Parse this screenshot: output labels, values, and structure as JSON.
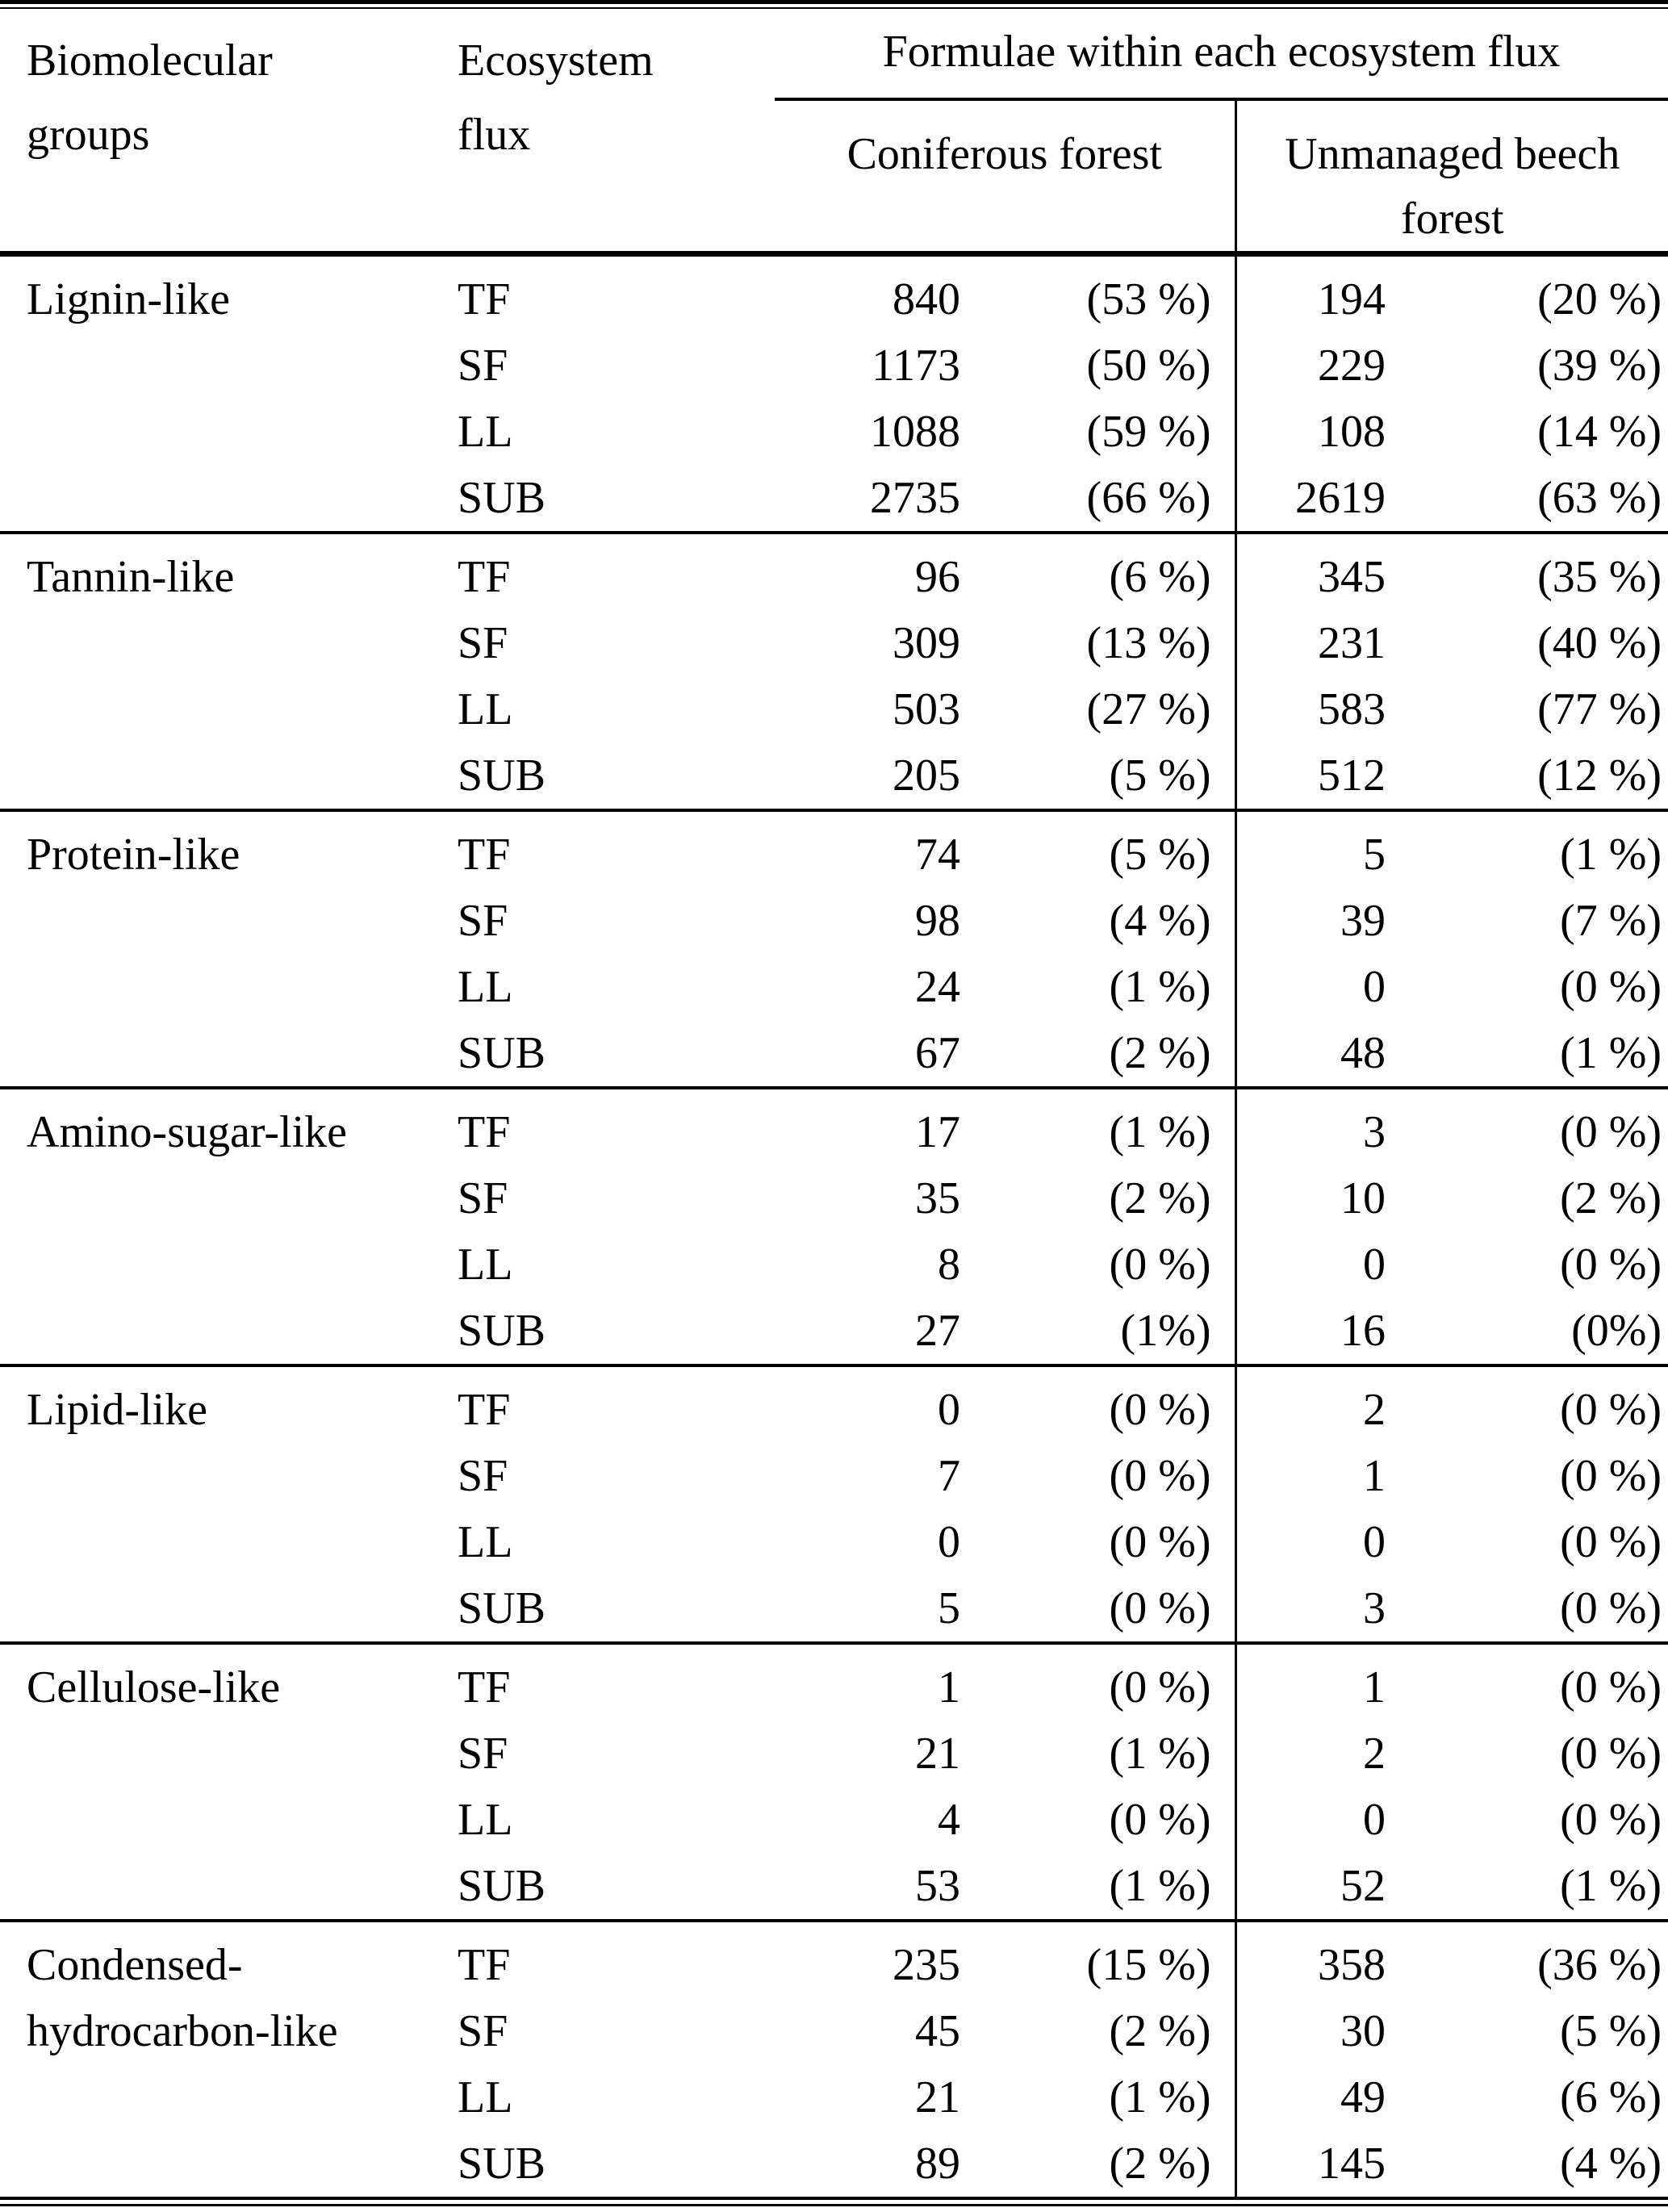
{
  "colors": {
    "background": "#ffffff",
    "text": "#000000",
    "rule": "#000000"
  },
  "table": {
    "headers": {
      "biomolecular_groups": "Biomolecular groups",
      "ecosystem_flux": "Ecosystem flux",
      "formulae_span": "Formulae within each ecosystem flux",
      "coniferous": "Coniferous forest",
      "beech": "Unmanaged beech forest"
    },
    "groups": [
      {
        "name": "Lignin-like",
        "rows": [
          {
            "flux": "TF",
            "coniferous_count": "840",
            "coniferous_pct": "(53 %)",
            "beech_count": "194",
            "beech_pct": "(20 %)"
          },
          {
            "flux": "SF",
            "coniferous_count": "1173",
            "coniferous_pct": "(50 %)",
            "beech_count": "229",
            "beech_pct": "(39 %)"
          },
          {
            "flux": "LL",
            "coniferous_count": "1088",
            "coniferous_pct": "(59 %)",
            "beech_count": "108",
            "beech_pct": "(14 %)"
          },
          {
            "flux": "SUB",
            "coniferous_count": "2735",
            "coniferous_pct": "(66 %)",
            "beech_count": "2619",
            "beech_pct": "(63 %)"
          }
        ]
      },
      {
        "name": "Tannin-like",
        "rows": [
          {
            "flux": "TF",
            "coniferous_count": "96",
            "coniferous_pct": "(6 %)",
            "beech_count": "345",
            "beech_pct": "(35 %)"
          },
          {
            "flux": "SF",
            "coniferous_count": "309",
            "coniferous_pct": "(13 %)",
            "beech_count": "231",
            "beech_pct": "(40 %)"
          },
          {
            "flux": "LL",
            "coniferous_count": "503",
            "coniferous_pct": "(27 %)",
            "beech_count": "583",
            "beech_pct": "(77 %)"
          },
          {
            "flux": "SUB",
            "coniferous_count": "205",
            "coniferous_pct": "(5 %)",
            "beech_count": "512",
            "beech_pct": "(12 %)"
          }
        ]
      },
      {
        "name": "Protein-like",
        "rows": [
          {
            "flux": "TF",
            "coniferous_count": "74",
            "coniferous_pct": "(5 %)",
            "beech_count": "5",
            "beech_pct": "(1 %)"
          },
          {
            "flux": "SF",
            "coniferous_count": "98",
            "coniferous_pct": "(4 %)",
            "beech_count": "39",
            "beech_pct": "(7 %)"
          },
          {
            "flux": "LL",
            "coniferous_count": "24",
            "coniferous_pct": "(1 %)",
            "beech_count": "0",
            "beech_pct": "(0 %)"
          },
          {
            "flux": "SUB",
            "coniferous_count": "67",
            "coniferous_pct": "(2 %)",
            "beech_count": "48",
            "beech_pct": "(1 %)"
          }
        ]
      },
      {
        "name": "Amino-sugar-like",
        "rows": [
          {
            "flux": "TF",
            "coniferous_count": "17",
            "coniferous_pct": "(1 %)",
            "beech_count": "3",
            "beech_pct": "(0 %)"
          },
          {
            "flux": "SF",
            "coniferous_count": "35",
            "coniferous_pct": "(2 %)",
            "beech_count": "10",
            "beech_pct": "(2 %)"
          },
          {
            "flux": "LL",
            "coniferous_count": "8",
            "coniferous_pct": "(0 %)",
            "beech_count": "0",
            "beech_pct": "(0 %)"
          },
          {
            "flux": "SUB",
            "coniferous_count": "27",
            "coniferous_pct": "(1%)",
            "beech_count": "16",
            "beech_pct": "(0%)"
          }
        ]
      },
      {
        "name": "Lipid-like",
        "rows": [
          {
            "flux": "TF",
            "coniferous_count": "0",
            "coniferous_pct": "(0 %)",
            "beech_count": "2",
            "beech_pct": "(0 %)"
          },
          {
            "flux": "SF",
            "coniferous_count": "7",
            "coniferous_pct": "(0 %)",
            "beech_count": "1",
            "beech_pct": "(0 %)"
          },
          {
            "flux": "LL",
            "coniferous_count": "0",
            "coniferous_pct": "(0 %)",
            "beech_count": "0",
            "beech_pct": "(0 %)"
          },
          {
            "flux": "SUB",
            "coniferous_count": "5",
            "coniferous_pct": "(0 %)",
            "beech_count": "3",
            "beech_pct": "(0 %)"
          }
        ]
      },
      {
        "name": "Cellulose-like",
        "rows": [
          {
            "flux": "TF",
            "coniferous_count": "1",
            "coniferous_pct": "(0 %)",
            "beech_count": "1",
            "beech_pct": "(0 %)"
          },
          {
            "flux": "SF",
            "coniferous_count": "21",
            "coniferous_pct": "(1 %)",
            "beech_count": "2",
            "beech_pct": "(0 %)"
          },
          {
            "flux": "LL",
            "coniferous_count": "4",
            "coniferous_pct": "(0 %)",
            "beech_count": "0",
            "beech_pct": "(0 %)"
          },
          {
            "flux": "SUB",
            "coniferous_count": "53",
            "coniferous_pct": "(1 %)",
            "beech_count": "52",
            "beech_pct": "(1 %)"
          }
        ]
      },
      {
        "name": "Condensed-hydrocarbon-like",
        "rows": [
          {
            "flux": "TF",
            "coniferous_count": "235",
            "coniferous_pct": "(15 %)",
            "beech_count": "358",
            "beech_pct": "(36 %)"
          },
          {
            "flux": "SF",
            "coniferous_count": "45",
            "coniferous_pct": "(2 %)",
            "beech_count": "30",
            "beech_pct": "(5 %)"
          },
          {
            "flux": "LL",
            "coniferous_count": "21",
            "coniferous_pct": "(1 %)",
            "beech_count": "49",
            "beech_pct": "(6 %)"
          },
          {
            "flux": "SUB",
            "coniferous_count": "89",
            "coniferous_pct": "(2 %)",
            "beech_count": "145",
            "beech_pct": "(4 %)"
          }
        ]
      }
    ]
  }
}
